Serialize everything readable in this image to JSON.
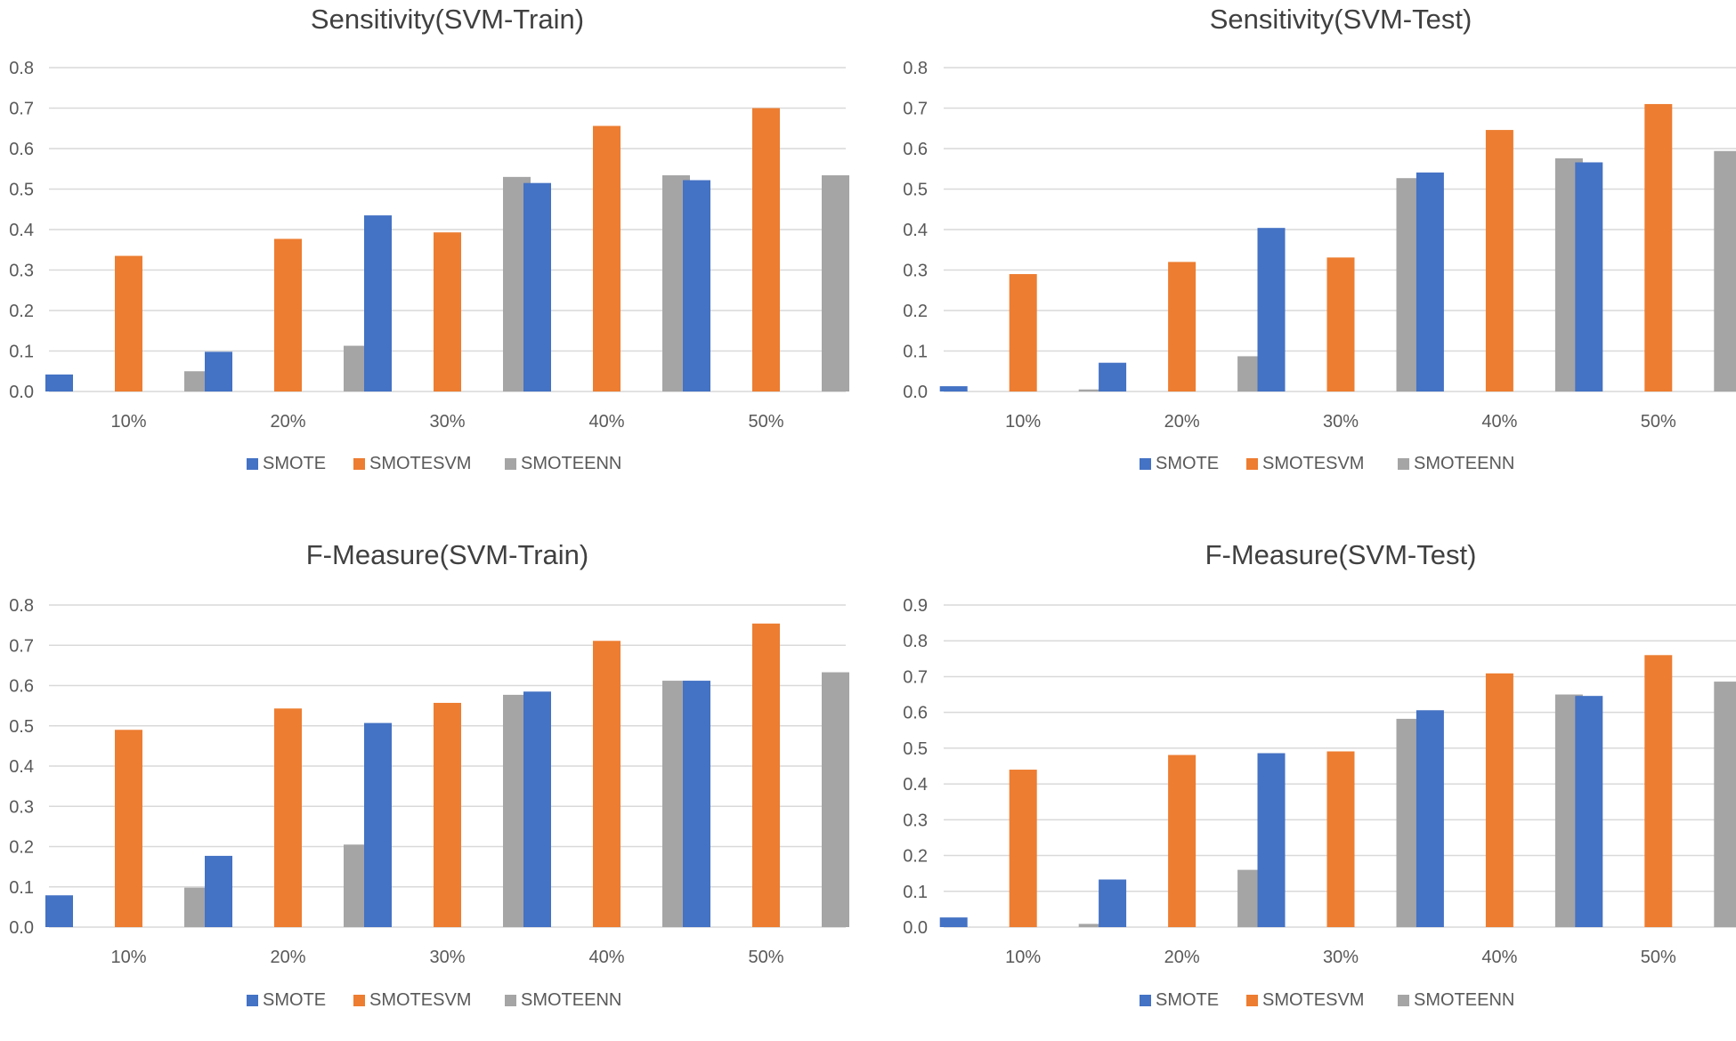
{
  "chart_data": [
    {
      "type": "bar",
      "title": "Sensitivity(SVM-Train)",
      "categories": [
        "10%",
        "20%",
        "30%",
        "40%",
        "50%"
      ],
      "series": [
        {
          "name": "SMOTE",
          "values": [
            0.042,
            0.098,
            0.435,
            0.515,
            0.522
          ]
        },
        {
          "name": "SMOTESVM",
          "values": [
            0.335,
            0.377,
            0.393,
            0.656,
            0.7
          ]
        },
        {
          "name": "SMOTEENN",
          "values": [
            0.05,
            0.113,
            0.53,
            0.534,
            0.534
          ]
        }
      ],
      "yticks": [
        "0.0",
        "0.1",
        "0.2",
        "0.3",
        "0.4",
        "0.5",
        "0.6",
        "0.7",
        "0.8"
      ],
      "ylim": [
        0,
        0.8
      ],
      "xlabel": "",
      "ylabel": "",
      "legend": "bottom",
      "colors": [
        "#4472c4",
        "#ed7d31",
        "#a5a5a5"
      ]
    },
    {
      "type": "bar",
      "title": "Sensitivity(SVM-Test)",
      "categories": [
        "10%",
        "20%",
        "30%",
        "40%",
        "50%"
      ],
      "series": [
        {
          "name": "SMOTE",
          "values": [
            0.013,
            0.071,
            0.404,
            0.541,
            0.566
          ]
        },
        {
          "name": "SMOTESVM",
          "values": [
            0.29,
            0.32,
            0.331,
            0.646,
            0.71
          ]
        },
        {
          "name": "SMOTEENN",
          "values": [
            0.005,
            0.087,
            0.527,
            0.576,
            0.594
          ]
        }
      ],
      "yticks": [
        "0.0",
        "0.1",
        "0.2",
        "0.3",
        "0.4",
        "0.5",
        "0.6",
        "0.7",
        "0.8"
      ],
      "ylim": [
        0,
        0.8
      ],
      "xlabel": "",
      "ylabel": "",
      "legend": "bottom",
      "colors": [
        "#4472c4",
        "#ed7d31",
        "#a5a5a5"
      ]
    },
    {
      "type": "bar",
      "title": "F-Measure(SVM-Train)",
      "categories": [
        "10%",
        "20%",
        "30%",
        "40%",
        "50%"
      ],
      "series": [
        {
          "name": "SMOTE",
          "values": [
            0.079,
            0.177,
            0.507,
            0.585,
            0.612
          ]
        },
        {
          "name": "SMOTESVM",
          "values": [
            0.49,
            0.543,
            0.557,
            0.711,
            0.754
          ]
        },
        {
          "name": "SMOTEENN",
          "values": [
            0.098,
            0.205,
            0.577,
            0.612,
            0.633
          ]
        }
      ],
      "yticks": [
        "0.0",
        "0.1",
        "0.2",
        "0.3",
        "0.4",
        "0.5",
        "0.6",
        "0.7",
        "0.8"
      ],
      "ylim": [
        0,
        0.8
      ],
      "xlabel": "",
      "ylabel": "",
      "legend": "bottom",
      "colors": [
        "#4472c4",
        "#ed7d31",
        "#a5a5a5"
      ]
    },
    {
      "type": "bar",
      "title": "F-Measure(SVM-Test)",
      "categories": [
        "10%",
        "20%",
        "30%",
        "40%",
        "50%"
      ],
      "series": [
        {
          "name": "SMOTE",
          "values": [
            0.027,
            0.133,
            0.486,
            0.606,
            0.646
          ]
        },
        {
          "name": "SMOTESVM",
          "values": [
            0.44,
            0.481,
            0.491,
            0.709,
            0.76
          ]
        },
        {
          "name": "SMOTEENN",
          "values": [
            0.009,
            0.16,
            0.582,
            0.65,
            0.686
          ]
        }
      ],
      "yticks": [
        "0.0",
        "0.1",
        "0.2",
        "0.3",
        "0.4",
        "0.5",
        "0.6",
        "0.7",
        "0.8",
        "0.9"
      ],
      "ylim": [
        0,
        0.9
      ],
      "xlabel": "",
      "ylabel": "",
      "legend": "bottom",
      "colors": [
        "#4472c4",
        "#ed7d31",
        "#a5a5a5"
      ]
    }
  ]
}
